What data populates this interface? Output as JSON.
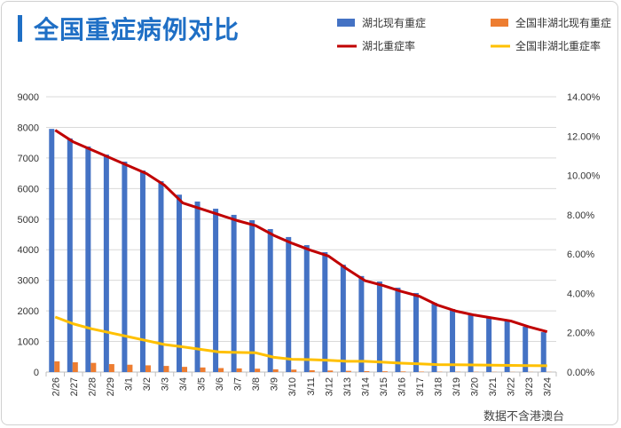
{
  "title": "全国重症病例对比",
  "footnote": "数据不含港澳台",
  "chart_data": {
    "type": "bar",
    "title": "全国重症病例对比",
    "categories": [
      "2/26",
      "2/27",
      "2/28",
      "2/29",
      "3/1",
      "3/2",
      "3/3",
      "3/4",
      "3/5",
      "3/6",
      "3/7",
      "3/8",
      "3/9",
      "3/10",
      "3/11",
      "3/12",
      "3/13",
      "3/14",
      "3/15",
      "3/16",
      "3/17",
      "3/18",
      "3/19",
      "3/20",
      "3/21",
      "3/22",
      "3/23",
      "3/24"
    ],
    "ylim": [
      0,
      9000
    ],
    "yticks": [
      "0",
      "1000",
      "2000",
      "3000",
      "4000",
      "5000",
      "6000",
      "7000",
      "8000",
      "9000"
    ],
    "y2lim": [
      0,
      14
    ],
    "y2ticks": [
      "0.00%",
      "2.00%",
      "4.00%",
      "6.00%",
      "8.00%",
      "10.00%",
      "12.00%",
      "14.00%"
    ],
    "grid": true,
    "legend_position": "top-right",
    "series": [
      {
        "name": "湖北现有重症",
        "type": "bar",
        "axis": "left",
        "color": "#4472c4",
        "values": [
          7950,
          7640,
          7375,
          7110,
          6880,
          6590,
          6240,
          5800,
          5575,
          5340,
          5140,
          4965,
          4675,
          4415,
          4150,
          3920,
          3510,
          3140,
          2960,
          2760,
          2585,
          2265,
          2060,
          1890,
          1800,
          1685,
          1480,
          1305
        ]
      },
      {
        "name": "全国非湖北现有重症",
        "type": "bar",
        "axis": "left",
        "color": "#ed7d31",
        "values": [
          350,
          320,
          300,
          260,
          240,
          220,
          200,
          170,
          150,
          130,
          120,
          110,
          90,
          80,
          60,
          50,
          40,
          30,
          25,
          20,
          15,
          10,
          10,
          8,
          6,
          5,
          5,
          5
        ]
      },
      {
        "name": "湖北重症率",
        "type": "line",
        "axis": "right",
        "unit": "%",
        "color": "#c00000",
        "values": [
          12.3,
          11.7,
          11.3,
          10.9,
          10.5,
          10.1,
          9.5,
          8.6,
          8.3,
          8.0,
          7.7,
          7.45,
          6.95,
          6.55,
          6.2,
          5.9,
          5.25,
          4.65,
          4.4,
          4.1,
          3.85,
          3.4,
          3.1,
          2.9,
          2.75,
          2.6,
          2.3,
          2.05
        ]
      },
      {
        "name": "全国非湖北重症率",
        "type": "line",
        "axis": "right",
        "unit": "%",
        "color": "#ffc000",
        "values": [
          2.8,
          2.45,
          2.2,
          2.0,
          1.8,
          1.6,
          1.4,
          1.28,
          1.15,
          1.02,
          1.0,
          0.98,
          0.75,
          0.65,
          0.63,
          0.6,
          0.55,
          0.55,
          0.5,
          0.45,
          0.42,
          0.38,
          0.37,
          0.36,
          0.35,
          0.34,
          0.33,
          0.32
        ]
      }
    ]
  }
}
